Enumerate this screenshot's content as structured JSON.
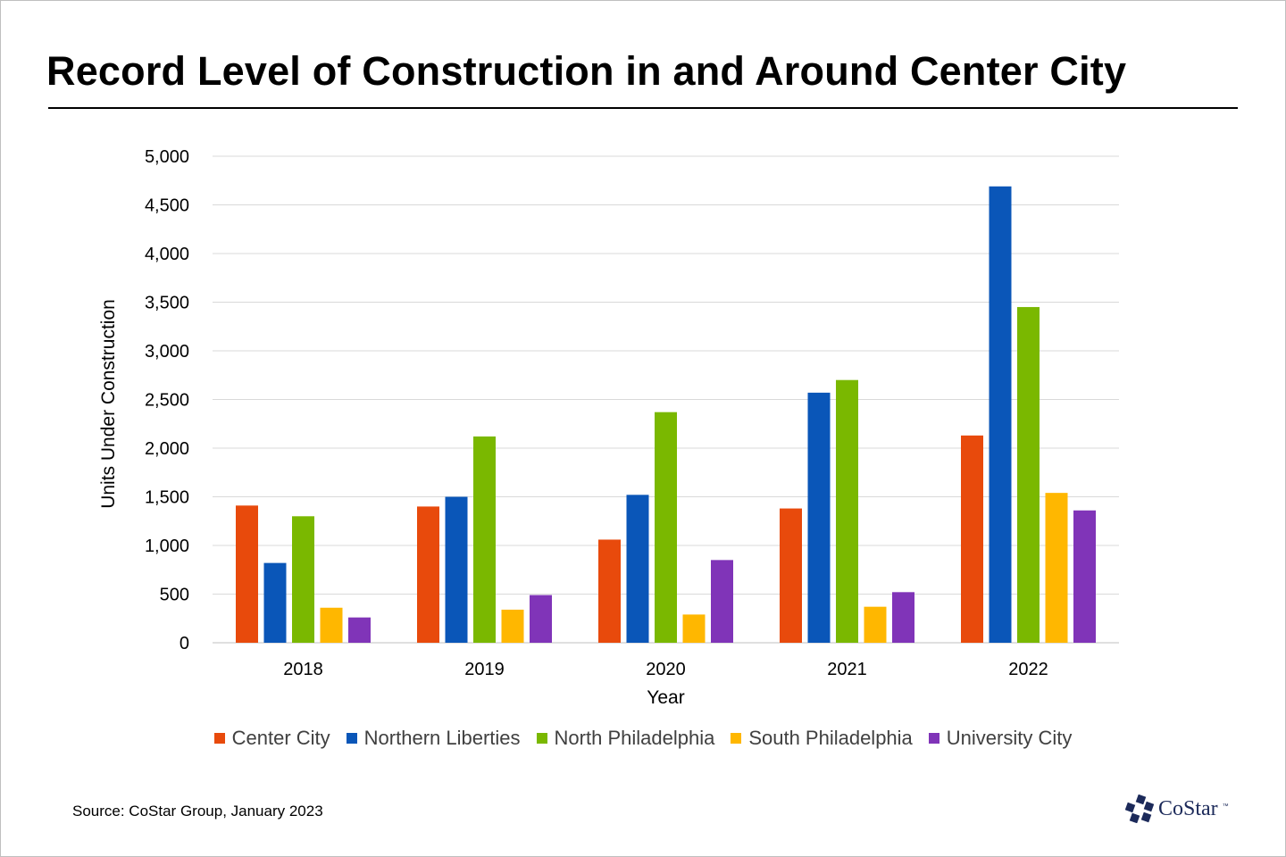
{
  "title": "Record Level of Construction in and Around Center City",
  "source": "Source: CoStar Group, January 2023",
  "logo": {
    "text": "CoStar",
    "tm": "™"
  },
  "chart_data": {
    "type": "bar",
    "title": "",
    "xlabel": "Year",
    "ylabel": "Units Under Construction",
    "ylim": [
      0,
      5000
    ],
    "yticks": [
      0,
      500,
      1000,
      1500,
      2000,
      2500,
      3000,
      3500,
      4000,
      4500,
      5000
    ],
    "ytick_labels": [
      "0",
      "500",
      "1,000",
      "1,500",
      "2,000",
      "2,500",
      "3,000",
      "3,500",
      "4,000",
      "4,500",
      "5,000"
    ],
    "grid": true,
    "legend_position": "bottom",
    "categories": [
      "2018",
      "2019",
      "2020",
      "2021",
      "2022"
    ],
    "series": [
      {
        "name": "Center City",
        "color": "#e84a0c",
        "values": [
          1410,
          1400,
          1060,
          1380,
          2130
        ]
      },
      {
        "name": "Northern Liberties",
        "color": "#0a56b8",
        "values": [
          820,
          1500,
          1520,
          2570,
          4690
        ]
      },
      {
        "name": "North Philadelphia",
        "color": "#7ab800",
        "values": [
          1300,
          2120,
          2370,
          2700,
          3450
        ]
      },
      {
        "name": "South Philadelphia",
        "color": "#ffb700",
        "values": [
          360,
          340,
          290,
          370,
          1540
        ]
      },
      {
        "name": "University City",
        "color": "#8034b8",
        "values": [
          260,
          490,
          850,
          520,
          1360
        ]
      }
    ]
  }
}
